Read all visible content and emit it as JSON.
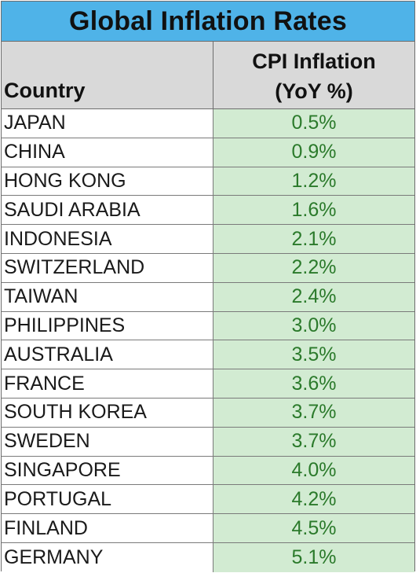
{
  "title": "Global Inflation Rates",
  "header": {
    "country": "Country",
    "value_line1": "CPI Inflation",
    "value_line2": "(YoY %)"
  },
  "colors": {
    "title_background": "#4fb3e8",
    "header_background": "#d9d9d9",
    "value_background": "#d2ebd2",
    "value_text": "#2b7a2b"
  },
  "chart_data": {
    "type": "table",
    "title": "Global Inflation Rates",
    "columns": [
      "Country",
      "CPI Inflation (YoY %)"
    ],
    "rows": [
      {
        "country": "JAPAN",
        "value": "0.5%"
      },
      {
        "country": "CHINA",
        "value": "0.9%"
      },
      {
        "country": "HONG KONG",
        "value": "1.2%"
      },
      {
        "country": "SAUDI ARABIA",
        "value": "1.6%"
      },
      {
        "country": "INDONESIA",
        "value": "2.1%"
      },
      {
        "country": "SWITZERLAND",
        "value": "2.2%"
      },
      {
        "country": "TAIWAN",
        "value": "2.4%"
      },
      {
        "country": "PHILIPPINES",
        "value": "3.0%"
      },
      {
        "country": "AUSTRALIA",
        "value": "3.5%"
      },
      {
        "country": "FRANCE",
        "value": "3.6%"
      },
      {
        "country": "SOUTH KOREA",
        "value": "3.7%"
      },
      {
        "country": "SWEDEN",
        "value": "3.7%"
      },
      {
        "country": "SINGAPORE",
        "value": "4.0%"
      },
      {
        "country": "PORTUGAL",
        "value": "4.2%"
      },
      {
        "country": "FINLAND",
        "value": "4.5%"
      },
      {
        "country": "GERMANY",
        "value": "5.1%"
      }
    ]
  }
}
